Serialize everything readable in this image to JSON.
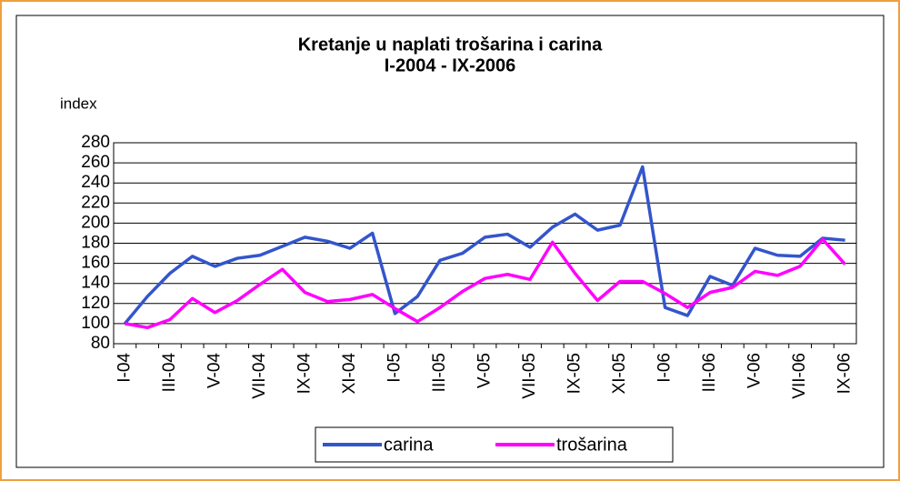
{
  "chart_data": {
    "type": "line",
    "title": "Kretanje u naplati trošarina i carina",
    "subtitle": "I-2004 - IX-2006",
    "y_label": "index",
    "categories": [
      "I-04",
      null,
      "III-04",
      null,
      "V-04",
      null,
      "VII-04",
      null,
      "IX-04",
      null,
      "XI-04",
      null,
      "I-05",
      null,
      "III-05",
      null,
      "V-05",
      null,
      "VII-05",
      null,
      "IX-05",
      null,
      "XI-05",
      null,
      "I-06",
      null,
      "III-06",
      null,
      "V-06",
      null,
      "VII-06",
      null,
      "IX-06"
    ],
    "series": [
      {
        "name": "carina",
        "color": "#3355cc",
        "values": [
          100,
          127,
          150,
          167,
          157,
          165,
          168,
          177,
          186,
          182,
          175,
          190,
          110,
          127,
          163,
          170,
          186,
          189,
          176,
          196,
          209,
          193,
          198,
          256,
          116,
          108,
          147,
          138,
          175,
          168,
          167,
          185,
          183
        ]
      },
      {
        "name": "trošarina",
        "color": "#ff00ff",
        "values": [
          100,
          96,
          104,
          125,
          111,
          123,
          139,
          154,
          131,
          122,
          124,
          129,
          115,
          102,
          116,
          132,
          145,
          149,
          144,
          181,
          150,
          123,
          142,
          142,
          130,
          116,
          131,
          136,
          152,
          148,
          157,
          184,
          159
        ]
      }
    ],
    "ylim": [
      80,
      280
    ],
    "yticks": [
      80,
      100,
      120,
      140,
      160,
      180,
      200,
      220,
      240,
      260,
      280
    ],
    "grid": true,
    "legend": "bottom"
  }
}
